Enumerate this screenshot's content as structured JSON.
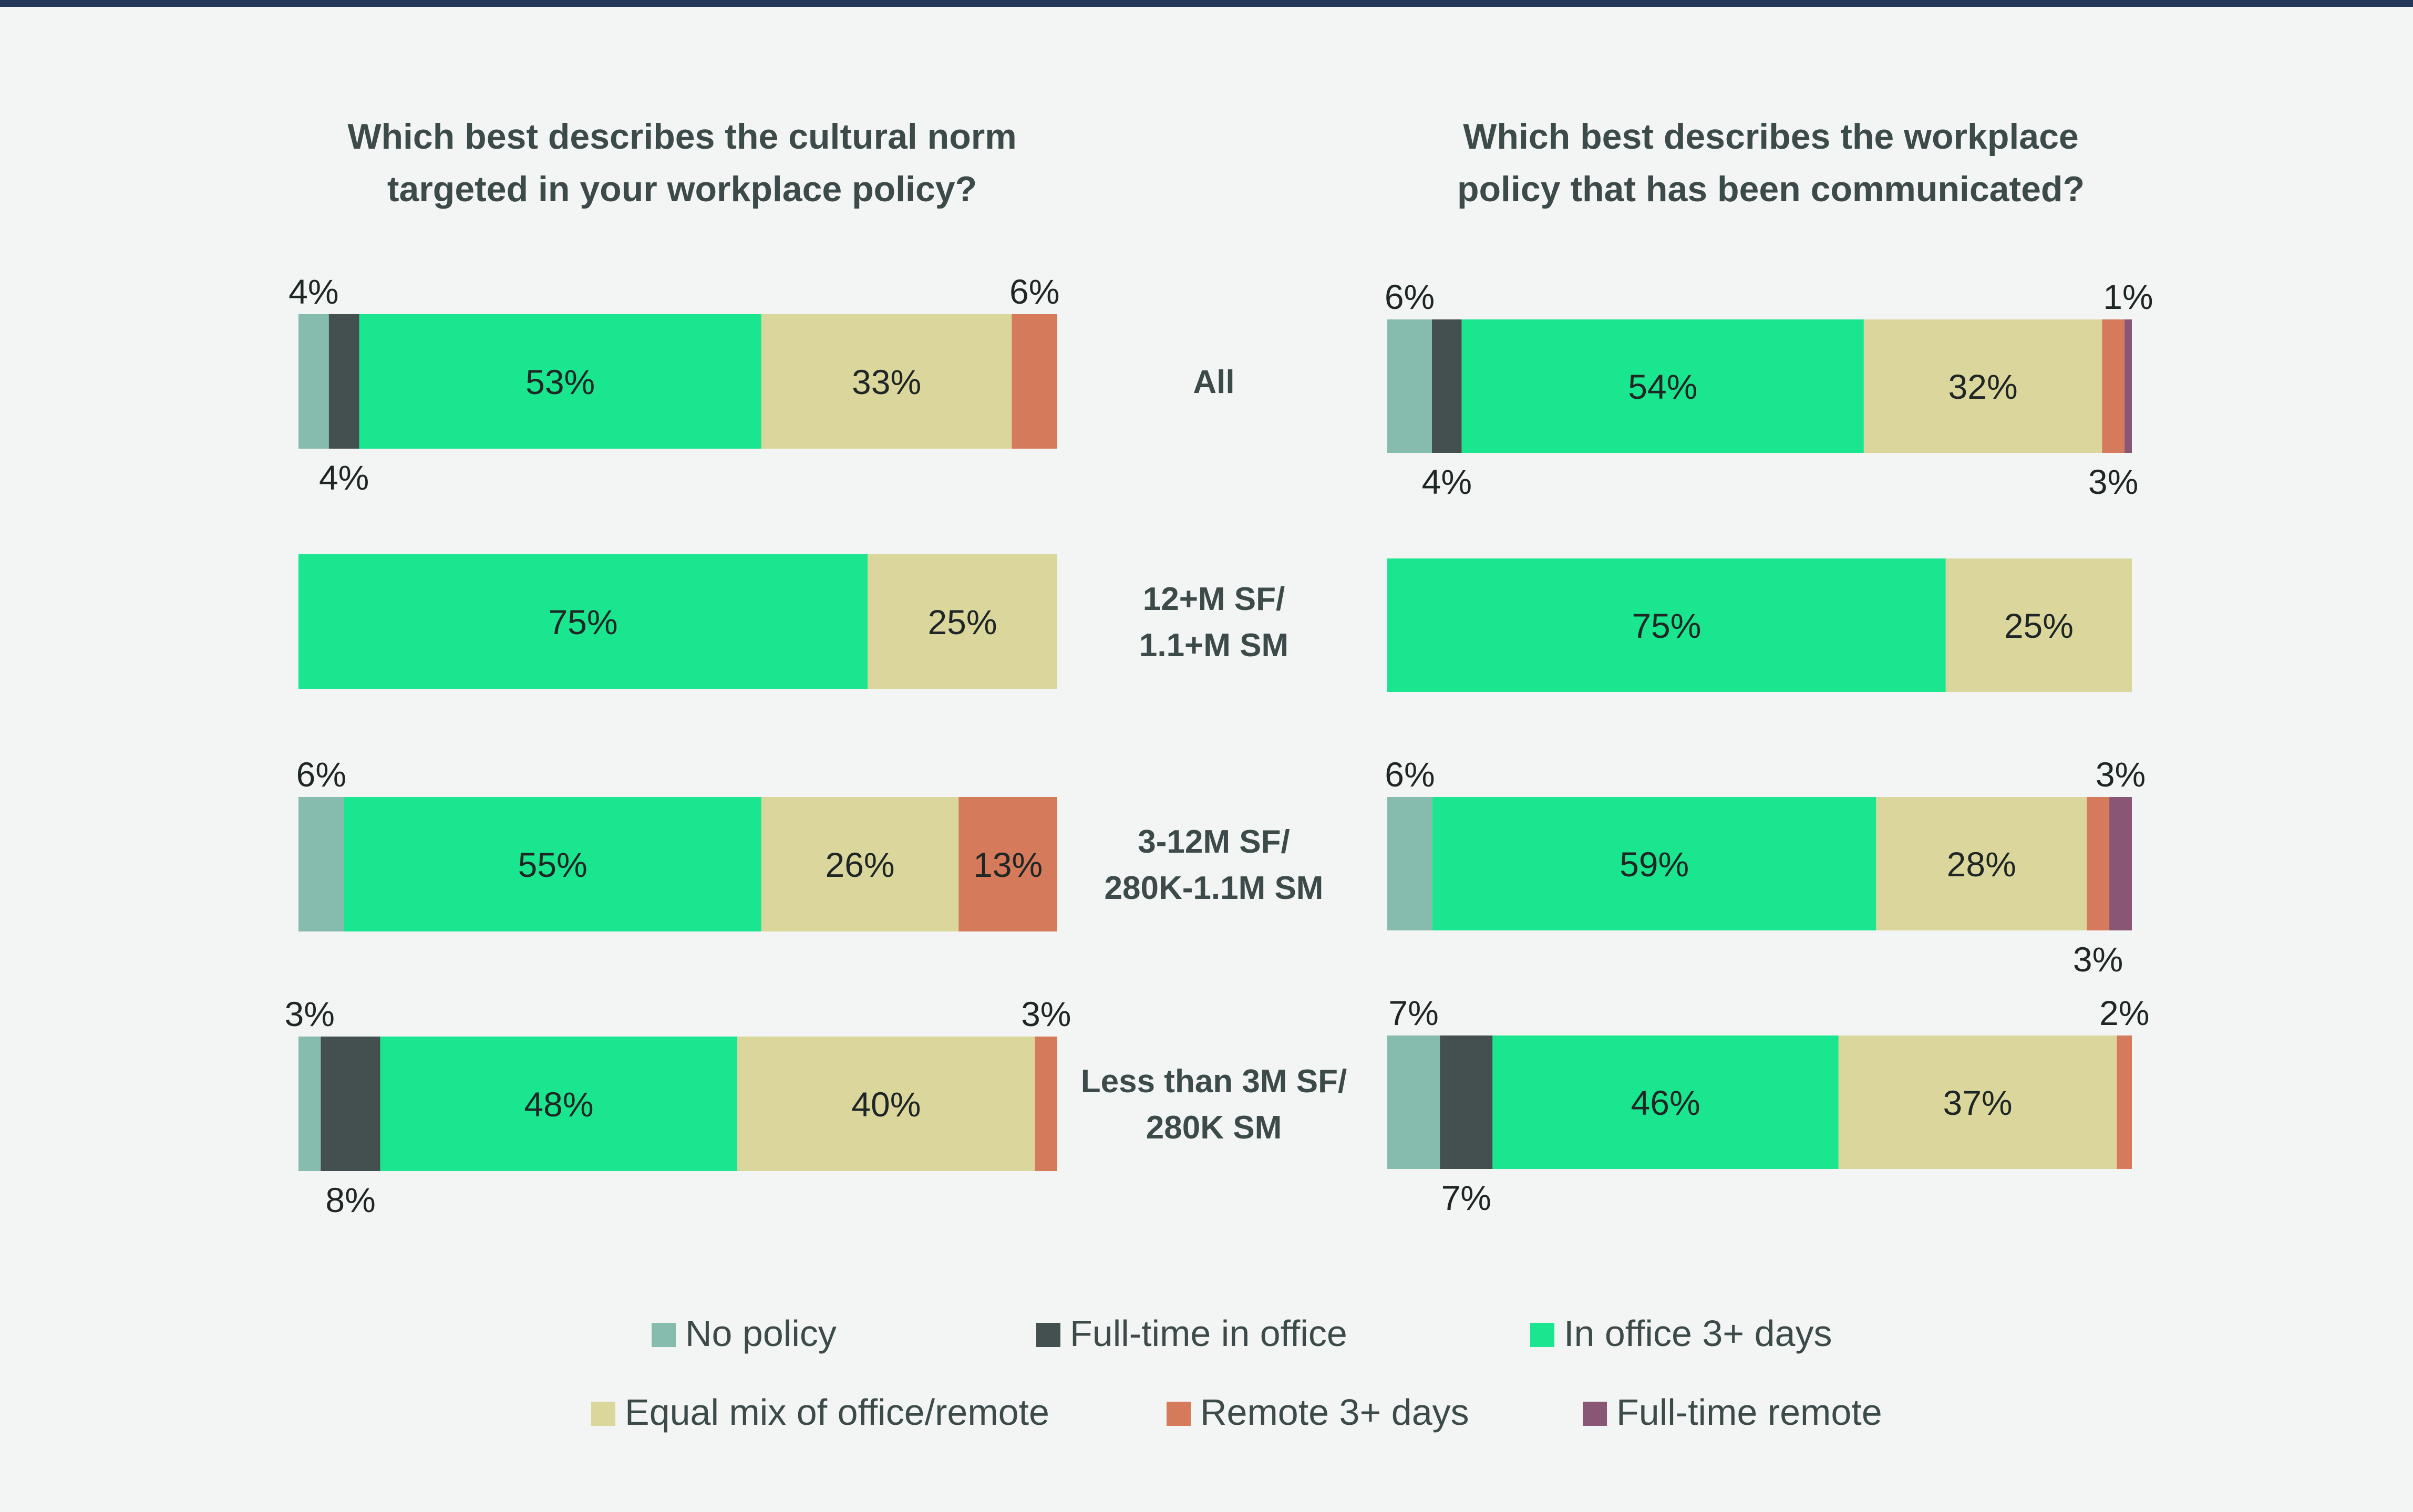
{
  "colors": {
    "background": "#f3f5f4",
    "top_rule": "#22375a",
    "title_text": "#3d4a4a",
    "label_dark": "#1f2626",
    "label_light": "#ffffff"
  },
  "chart_data": [
    {
      "type": "bar",
      "orientation": "horizontal",
      "stacked": true,
      "title": "Which best describes the cultural norm targeted in your workplace policy?",
      "categories": [
        "All",
        "12+M SF/ 1.1+M SM",
        "3-12M SF/ 280K-1.1M SM",
        "Less than 3M SF/ 280K SM"
      ],
      "series": [
        {
          "name": "No policy",
          "color": "#86bcad",
          "values": [
            4,
            0,
            6,
            3
          ],
          "labels": [
            "4%",
            "",
            "6%",
            "3%"
          ]
        },
        {
          "name": "Full-time in office",
          "color": "#444f50",
          "values": [
            4,
            0,
            0,
            8
          ],
          "labels": [
            "4%",
            "",
            "",
            "8%"
          ]
        },
        {
          "name": "In office 3+ days",
          "color": "#19e68e",
          "values": [
            53,
            75,
            55,
            48
          ],
          "labels": [
            "53%",
            "75%",
            "55%",
            "48%"
          ]
        },
        {
          "name": "Equal mix of office/remote",
          "color": "#dbd79c",
          "values": [
            33,
            25,
            26,
            40
          ],
          "labels": [
            "33%",
            "25%",
            "26%",
            "40%"
          ]
        },
        {
          "name": "Remote 3+ days",
          "color": "#d57a5a",
          "values": [
            6,
            0,
            13,
            3
          ],
          "labels": [
            "6%",
            "",
            "13%",
            "3%"
          ]
        },
        {
          "name": "Full-time remote",
          "color": "#8a5676",
          "values": [
            0,
            0,
            0,
            0
          ],
          "labels": [
            "",
            "",
            "",
            ""
          ]
        }
      ],
      "xlim": [
        0,
        100
      ],
      "grid": false
    },
    {
      "type": "bar",
      "orientation": "horizontal",
      "stacked": true,
      "title": "Which best describes the workplace policy that has been communicated?",
      "categories": [
        "All",
        "12+M SF/ 1.1+M SM",
        "3-12M SF/ 280K-1.1M SM",
        "Less than 3M SF/ 280K SM"
      ],
      "series": [
        {
          "name": "No policy",
          "color": "#86bcad",
          "values": [
            6,
            0,
            6,
            7
          ],
          "labels": [
            "6%",
            "",
            "6%",
            "7%"
          ]
        },
        {
          "name": "Full-time in office",
          "color": "#444f50",
          "values": [
            4,
            0,
            0,
            7
          ],
          "labels": [
            "4%",
            "",
            "",
            "7%"
          ]
        },
        {
          "name": "In office 3+ days",
          "color": "#19e68e",
          "values": [
            54,
            75,
            59,
            46
          ],
          "labels": [
            "54%",
            "75%",
            "59%",
            "46%"
          ]
        },
        {
          "name": "Equal mix of office/remote",
          "color": "#dbd79c",
          "values": [
            32,
            25,
            28,
            37
          ],
          "labels": [
            "32%",
            "25%",
            "28%",
            "37%"
          ]
        },
        {
          "name": "Remote 3+ days",
          "color": "#d57a5a",
          "values": [
            3,
            0,
            3,
            2
          ],
          "labels": [
            "3%",
            "",
            "3%",
            "2%"
          ]
        },
        {
          "name": "Full-time remote",
          "color": "#8a5676",
          "values": [
            1,
            0,
            3,
            0
          ],
          "labels": [
            "1%",
            "",
            "3%",
            ""
          ]
        }
      ],
      "xlim": [
        0,
        100
      ],
      "grid": false
    }
  ],
  "row_labels": [
    [
      "All"
    ],
    [
      "12+M SF/",
      "1.1+M SM"
    ],
    [
      "3-12M SF/",
      "280K-1.1M SM"
    ],
    [
      "Less than 3M SF/",
      "280K SM"
    ]
  ],
  "titles": [
    [
      "Which best describes the cultural norm",
      "targeted in your workplace policy?"
    ],
    [
      "Which best describes the workplace",
      "policy that has been communicated?"
    ]
  ],
  "legend": {
    "placement": "bottom-center",
    "rows": [
      [
        {
          "label": "No policy",
          "color": "#86bcad"
        },
        {
          "label": "Full-time in office",
          "color": "#444f50"
        },
        {
          "label": "In office 3+ days",
          "color": "#19e68e"
        }
      ],
      [
        {
          "label": "Equal mix of office/remote",
          "color": "#dbd79c"
        },
        {
          "label": "Remote 3+ days",
          "color": "#d57a5a"
        },
        {
          "label": "Full-time remote",
          "color": "#8a5676"
        }
      ]
    ]
  }
}
